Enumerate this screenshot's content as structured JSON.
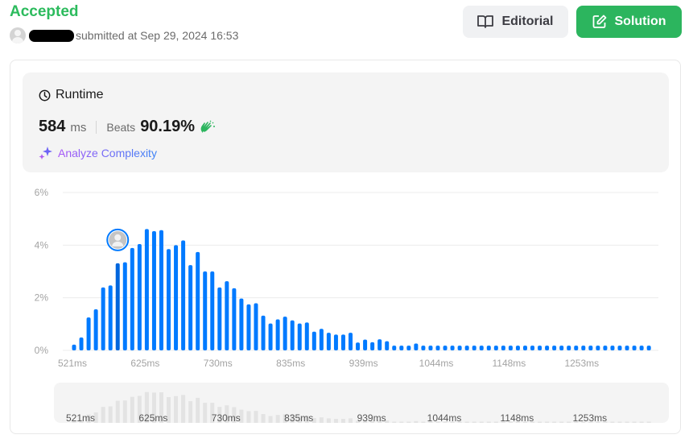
{
  "header": {
    "status": "Accepted",
    "submitted_text": "submitted at Sep 29, 2024 16:53",
    "editorial_label": "Editorial",
    "solution_label": "Solution"
  },
  "runtime": {
    "title": "Runtime",
    "value": "584",
    "unit": "ms",
    "beats_label": "Beats",
    "beats_value": "90.19%",
    "analyze_label": "Analyze Complexity"
  },
  "colors": {
    "accepted": "#2cbb5d",
    "bar": "#007aff",
    "bar_user": "#0066dd",
    "mini_bar": "#e3e3e3"
  },
  "chart_data": {
    "type": "bar",
    "ylabel": "",
    "xlabel": "",
    "ylim": [
      0,
      6
    ],
    "y_ticks": [
      "0%",
      "2%",
      "4%",
      "6%"
    ],
    "x_ticks": [
      "521ms",
      "625ms",
      "730ms",
      "835ms",
      "939ms",
      "1044ms",
      "1148ms",
      "1253ms"
    ],
    "grid": true,
    "user_bar_index": 6,
    "values": [
      0.22,
      0.49,
      1.25,
      1.56,
      2.39,
      2.47,
      3.31,
      3.35,
      3.89,
      4.04,
      4.61,
      4.53,
      4.57,
      3.85,
      4.0,
      4.18,
      3.24,
      3.74,
      3.0,
      3.0,
      2.39,
      2.63,
      2.36,
      1.97,
      1.75,
      1.79,
      1.32,
      1.02,
      1.18,
      1.28,
      1.14,
      1.02,
      1.06,
      0.71,
      0.82,
      0.67,
      0.6,
      0.6,
      0.67,
      0.3,
      0.41,
      0.31,
      0.42,
      0.35,
      0.18,
      0.18,
      0.18,
      0.26,
      0.18,
      0.18,
      0.18,
      0.18,
      0.18,
      0.18,
      0.18,
      0.18,
      0.18,
      0.18,
      0.18,
      0.18,
      0.18,
      0.18,
      0.18,
      0.18,
      0.18,
      0.18,
      0.18,
      0.18,
      0.18,
      0.18,
      0.18,
      0.18,
      0.18,
      0.18,
      0.18,
      0.18,
      0.18,
      0.18,
      0.18,
      0.18
    ]
  }
}
